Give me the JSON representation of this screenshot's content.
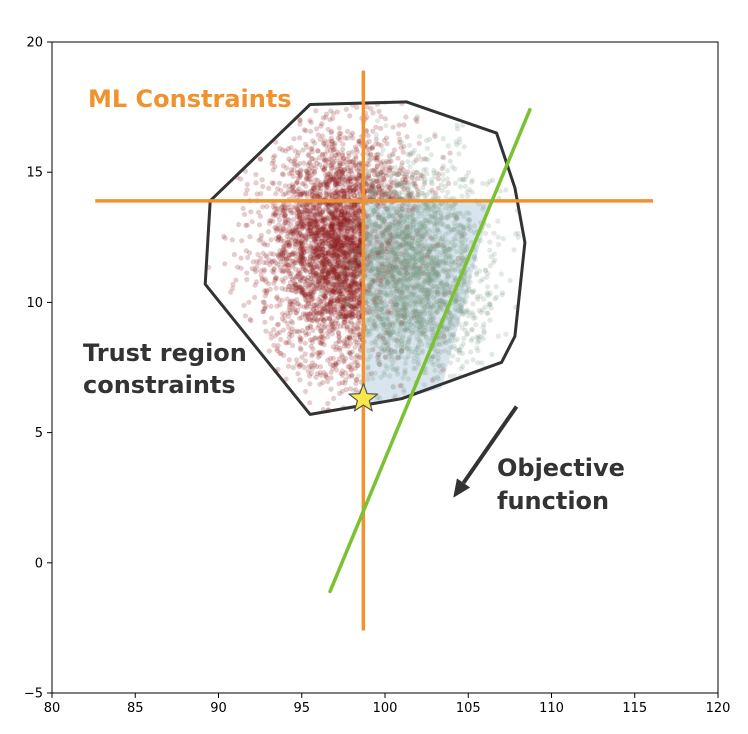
{
  "chart_data": {
    "type": "scatter",
    "xlim": [
      80,
      120
    ],
    "ylim": [
      -5,
      20
    ],
    "x_ticks": [
      80,
      85,
      90,
      95,
      100,
      105,
      110,
      115,
      120
    ],
    "y_ticks": [
      -5,
      0,
      5,
      10,
      15,
      20
    ],
    "grid": false,
    "series": [
      {
        "color": "#8b1a1a",
        "cluster": {
          "center": [
            97.5,
            12.0
          ],
          "spread": [
            2.3,
            2.2
          ],
          "count": 4200
        },
        "opacity": 0.22
      },
      {
        "color": "#7a9a86",
        "cluster": {
          "center": [
            101.5,
            11.2
          ],
          "spread": [
            2.3,
            2.0
          ],
          "count": 2600
        },
        "opacity": 0.22
      }
    ],
    "trust_region_polygon": [
      [
        95.5,
        17.6
      ],
      [
        101.3,
        17.7
      ],
      [
        106.7,
        16.5
      ],
      [
        107.8,
        14.4
      ],
      [
        108.4,
        12.3
      ],
      [
        107.8,
        8.7
      ],
      [
        107.0,
        7.7
      ],
      [
        101.0,
        6.3
      ],
      [
        95.5,
        5.7
      ],
      [
        89.2,
        10.7
      ],
      [
        89.5,
        13.9
      ]
    ],
    "feasible_region_polygon": [
      [
        98.7,
        13.9
      ],
      [
        106.4,
        13.9
      ],
      [
        103.4,
        6.7
      ],
      [
        101.0,
        6.3
      ],
      [
        98.7,
        6.1
      ]
    ],
    "feasible_region_color": "#b8cde0",
    "ml_constraints": {
      "color": "#f0922e",
      "vertical": {
        "x": 98.7,
        "y_range": [
          -2.6,
          18.9
        ]
      },
      "horizontal": {
        "y": 13.9,
        "x_range": [
          82.6,
          116.1
        ]
      }
    },
    "objective_line": {
      "color": "#7ac231",
      "points": [
        [
          96.7,
          -1.1
        ],
        [
          108.7,
          17.4
        ]
      ]
    },
    "optimum": {
      "x": 98.7,
      "y": 6.3,
      "color": "#f7e74a"
    },
    "objective_arrow": {
      "from": [
        107.9,
        6.0
      ],
      "to": [
        104.1,
        2.5
      ],
      "color": "#333333"
    },
    "annotations": {
      "ml_constraints": "ML Constraints",
      "trust_region_line1": "Trust region",
      "trust_region_line2": "constraints",
      "objective_line1": "Objective",
      "objective_line2": "function"
    }
  }
}
